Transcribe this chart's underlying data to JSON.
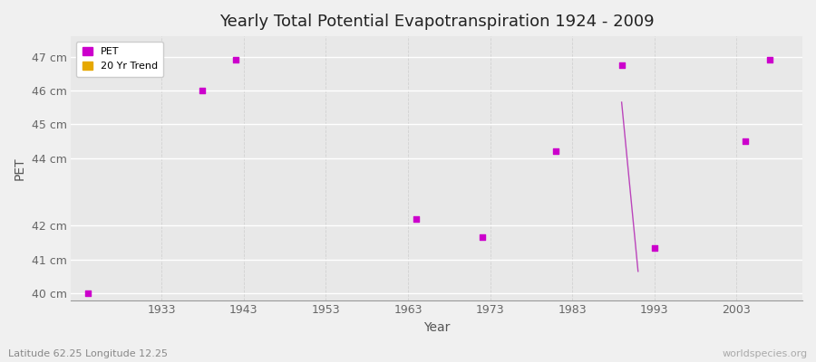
{
  "title": "Yearly Total Potential Evapotranspiration 1924 - 2009",
  "xlabel": "Year",
  "ylabel": "PET",
  "background_color": "#f0f0f0",
  "plot_bg_color": "#e8e8e8",
  "grid_color_major": "#ffffff",
  "grid_color_minor": "#d8d8d8",
  "xlim": [
    1922,
    2011
  ],
  "ylim": [
    39.8,
    47.6
  ],
  "ytick_labels": [
    "40 cm",
    "41 cm",
    "42 cm",
    "44 cm",
    "45 cm",
    "46 cm",
    "47 cm"
  ],
  "ytick_values": [
    40,
    41,
    42,
    44,
    45,
    46,
    47
  ],
  "xtick_values": [
    1933,
    1943,
    1953,
    1963,
    1973,
    1983,
    1993,
    2003
  ],
  "pet_years": [
    1924,
    1938,
    1942,
    1964,
    1972,
    1981,
    1989,
    1993,
    2004,
    2007
  ],
  "pet_values": [
    40.0,
    46.0,
    46.9,
    42.2,
    41.65,
    44.2,
    46.75,
    41.35,
    44.5,
    46.9
  ],
  "trend_x": [
    1989,
    1991
  ],
  "trend_y": [
    45.65,
    40.65
  ],
  "pet_color": "#cc00cc",
  "trend_color": "#bb44bb",
  "marker_size": 5,
  "subtitle": "Latitude 62.25 Longitude 12.25",
  "watermark": "worldspecies.org",
  "title_fontsize": 13,
  "axis_fontsize": 10,
  "tick_fontsize": 9
}
